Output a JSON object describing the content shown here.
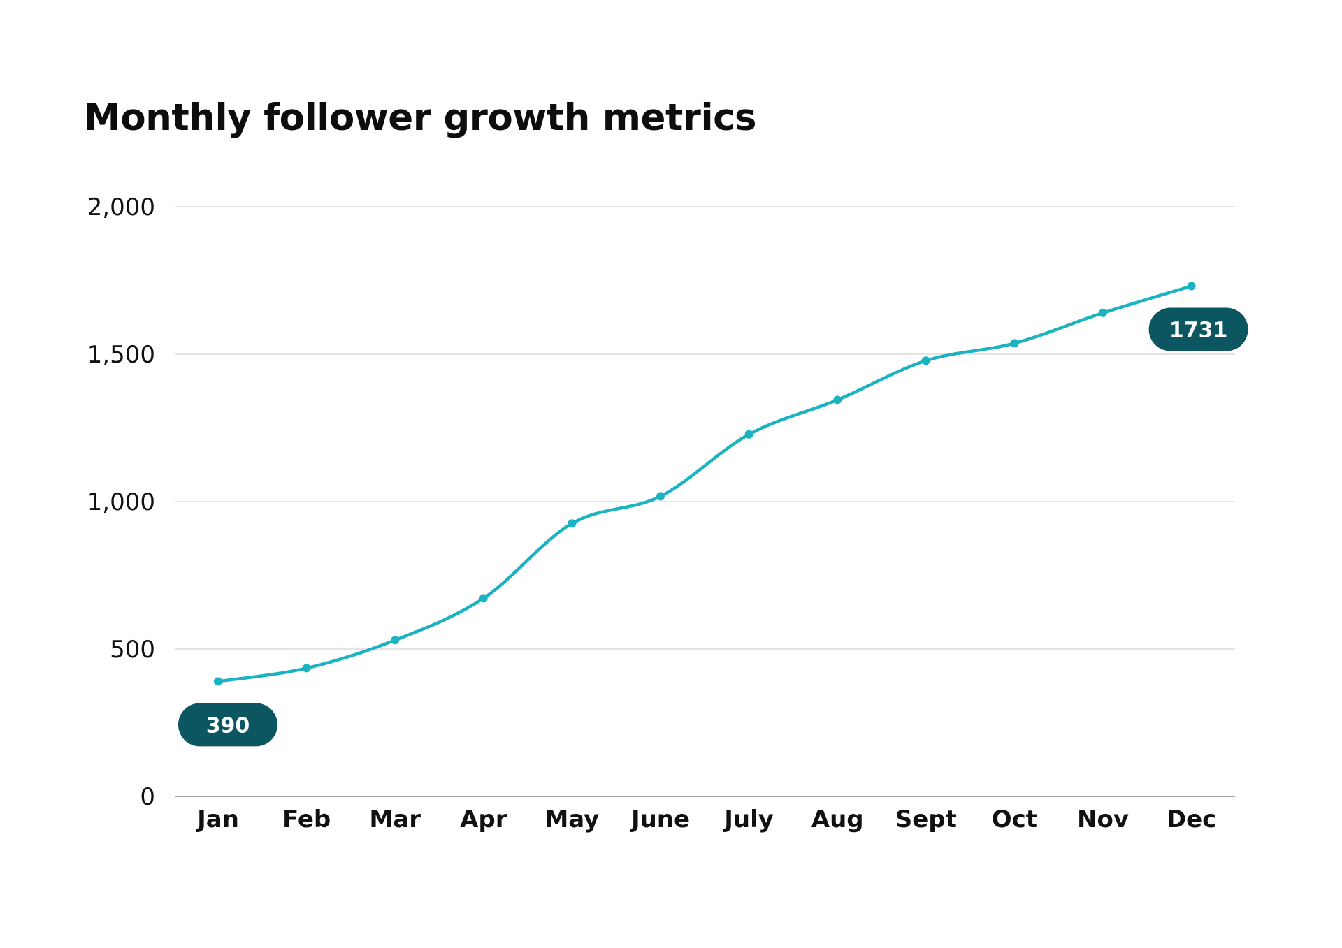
{
  "chart_data": {
    "type": "line",
    "title": "Monthly follower growth metrics",
    "xlabel": "",
    "ylabel": "",
    "categories": [
      "Jan",
      "Feb",
      "Mar",
      "Apr",
      "May",
      "June",
      "July",
      "Aug",
      "Sept",
      "Oct",
      "Nov",
      "Dec"
    ],
    "series": [
      {
        "values": [
          390,
          435,
          530,
          672,
          926,
          1018,
          1228,
          1345,
          1478,
          1537,
          1640,
          1731
        ],
        "color": "#1ab3c1"
      }
    ],
    "ylim": [
      0,
      2000
    ],
    "yticks": [
      0,
      500,
      1000,
      1500,
      2000
    ],
    "ytick_labels": [
      "0",
      "500",
      "1,000",
      "1,500",
      "2,000"
    ],
    "grid": "horizontal",
    "smooth": true,
    "callouts": [
      {
        "category": "Jan",
        "text": "390",
        "placement": "below-left"
      },
      {
        "category": "Dec",
        "text": "1731",
        "placement": "below-right"
      }
    ],
    "colors": {
      "line": "#1ab3c1",
      "callout": "#0b5661",
      "grid": "#d4d4d4",
      "baseline": "#a6a6a6"
    }
  }
}
